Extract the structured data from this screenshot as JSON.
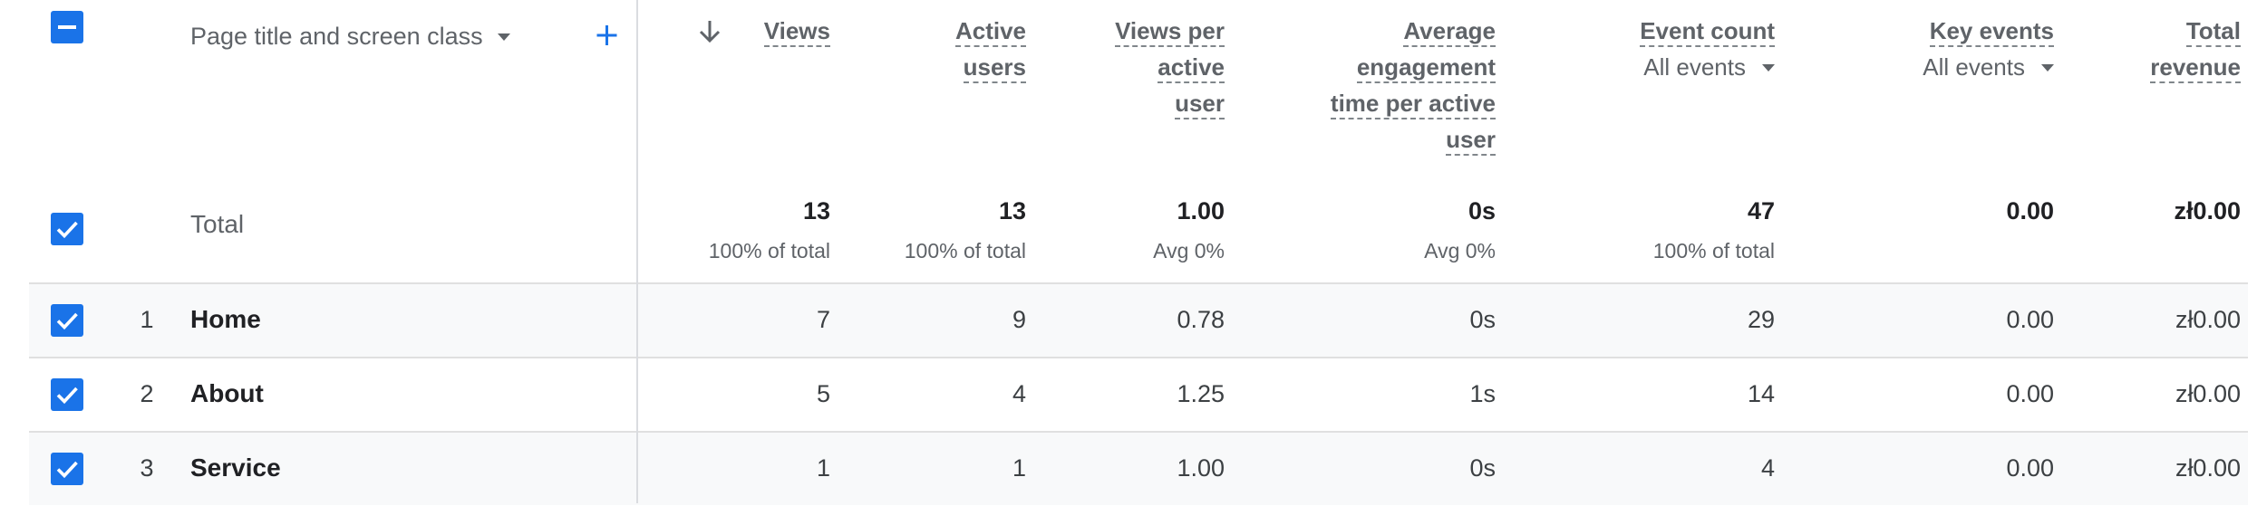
{
  "header": {
    "dimension_label": "Page title and screen class",
    "add_dimension_icon": "plus-icon",
    "sort_icon": "arrow-down-icon",
    "metrics": [
      {
        "lines": [
          "Views"
        ],
        "sort_active": true
      },
      {
        "lines": [
          "Active",
          "users"
        ]
      },
      {
        "lines": [
          "Views per",
          "active",
          "user"
        ]
      },
      {
        "lines": [
          "Average",
          "engagement",
          "time per active",
          "user"
        ]
      },
      {
        "lines": [
          "Event count"
        ],
        "filter": "All events"
      },
      {
        "lines": [
          "Key events"
        ],
        "filter": "All events"
      },
      {
        "lines": [
          "Total",
          "revenue"
        ]
      }
    ]
  },
  "totals": {
    "label": "Total",
    "values": [
      "13",
      "13",
      "1.00",
      "0s",
      "47",
      "0.00",
      "zł0.00"
    ],
    "subs": [
      "100% of total",
      "100% of total",
      "Avg 0%",
      "Avg 0%",
      "100% of total",
      "",
      ""
    ]
  },
  "rows": [
    {
      "num": "1",
      "name": "Home",
      "values": [
        "7",
        "9",
        "0.78",
        "0s",
        "29",
        "0.00",
        "zł0.00"
      ]
    },
    {
      "num": "2",
      "name": "About",
      "values": [
        "5",
        "4",
        "1.25",
        "1s",
        "14",
        "0.00",
        "zł0.00"
      ]
    },
    {
      "num": "3",
      "name": "Service",
      "values": [
        "1",
        "1",
        "1.00",
        "0s",
        "4",
        "0.00",
        "zł0.00"
      ]
    }
  ],
  "colors": {
    "accent": "#1a73e8",
    "header_text": "#5f6368",
    "row_alt": "#f8f9fa",
    "border": "#e0e0e0"
  }
}
